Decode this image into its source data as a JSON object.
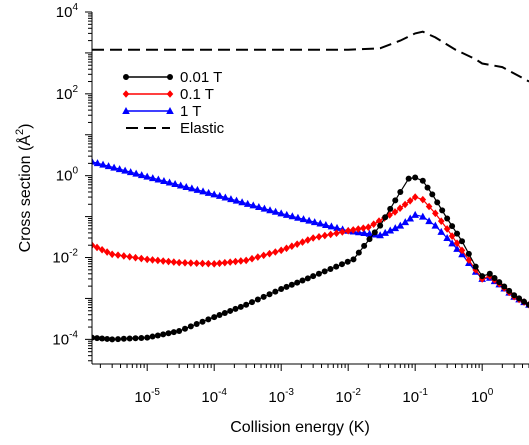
{
  "chart_data": {
    "type": "line",
    "x_scale": "log",
    "y_scale": "log",
    "xlabel": "Collision energy (K)",
    "ylabel": "Cross section (Å",
    "ylabel_sup": "2",
    "ylabel_tail": ")",
    "xlim": [
      1.5e-06,
      5
    ],
    "ylim": [
      2.5e-05,
      10000
    ],
    "x_ticks": [
      {
        "value": 1e-05,
        "base": "10",
        "exp": "-5"
      },
      {
        "value": 0.0001,
        "base": "10",
        "exp": "-4"
      },
      {
        "value": 0.001,
        "base": "10",
        "exp": "-3"
      },
      {
        "value": 0.01,
        "base": "10",
        "exp": "-2"
      },
      {
        "value": 0.1,
        "base": "10",
        "exp": "-1"
      },
      {
        "value": 1,
        "base": "10",
        "exp": "0"
      }
    ],
    "y_ticks": [
      {
        "value": 0.0001,
        "base": "10",
        "exp": "-4"
      },
      {
        "value": 0.01,
        "base": "10",
        "exp": "-2"
      },
      {
        "value": 1,
        "base": "10",
        "exp": "0"
      },
      {
        "value": 100,
        "base": "10",
        "exp": "2"
      },
      {
        "value": 10000,
        "base": "10",
        "exp": "4"
      }
    ],
    "legend_position": "top-left",
    "series": [
      {
        "name": "0.01 T",
        "color": "#000000",
        "marker": "circle",
        "x": [
          1.5e-06,
          3e-06,
          1e-05,
          3e-05,
          0.0001,
          0.0003,
          0.001,
          0.003,
          0.012,
          0.03,
          0.06,
          0.08,
          0.1,
          0.13,
          0.18,
          0.3,
          0.5,
          0.8,
          1.0,
          1.3,
          1.8,
          3.0,
          5.0
        ],
        "y": [
          0.00011,
          0.0001,
          0.00011,
          0.00016,
          0.00035,
          0.0007,
          0.0017,
          0.0035,
          0.009,
          0.06,
          0.4,
          0.85,
          0.9,
          0.75,
          0.35,
          0.09,
          0.025,
          0.006,
          0.0035,
          0.004,
          0.0025,
          0.0012,
          0.0007
        ]
      },
      {
        "name": "0.1 T",
        "color": "#ff0000",
        "marker": "diamond",
        "x": [
          1.5e-06,
          3e-06,
          1e-05,
          3e-05,
          0.0001,
          0.0003,
          0.001,
          0.003,
          0.01,
          0.02,
          0.05,
          0.1,
          0.13,
          0.2,
          0.3,
          0.5,
          0.8,
          1.0,
          1.3,
          1.8,
          3.0,
          5.0
        ],
        "y": [
          0.02,
          0.012,
          0.009,
          0.0075,
          0.007,
          0.0085,
          0.015,
          0.03,
          0.045,
          0.055,
          0.13,
          0.3,
          0.26,
          0.12,
          0.05,
          0.015,
          0.005,
          0.003,
          0.0035,
          0.0023,
          0.0011,
          0.0007
        ]
      },
      {
        "name": "1 T",
        "color": "#0000ff",
        "marker": "triangle",
        "x": [
          1.5e-06,
          1e-05,
          0.0001,
          0.001,
          0.01,
          0.03,
          0.06,
          0.1,
          0.13,
          0.2,
          0.3,
          0.5,
          0.8,
          1.0,
          1.3,
          1.8,
          3.0,
          5.0
        ],
        "y": [
          2.2,
          0.95,
          0.35,
          0.12,
          0.045,
          0.035,
          0.06,
          0.11,
          0.1,
          0.06,
          0.03,
          0.012,
          0.0045,
          0.003,
          0.0032,
          0.0022,
          0.0011,
          0.0007
        ]
      },
      {
        "name": "Elastic",
        "color": "#000000",
        "marker": "none",
        "dash": true,
        "x": [
          1.5e-06,
          1e-05,
          0.0001,
          0.001,
          0.01,
          0.03,
          0.06,
          0.1,
          0.13,
          0.2,
          0.4,
          0.8,
          1.0,
          2.0,
          5.0
        ],
        "y": [
          1200,
          1200,
          1200,
          1200,
          1200,
          1300,
          2000,
          3000,
          3300,
          2400,
          1200,
          700,
          550,
          450,
          200
        ]
      }
    ]
  }
}
